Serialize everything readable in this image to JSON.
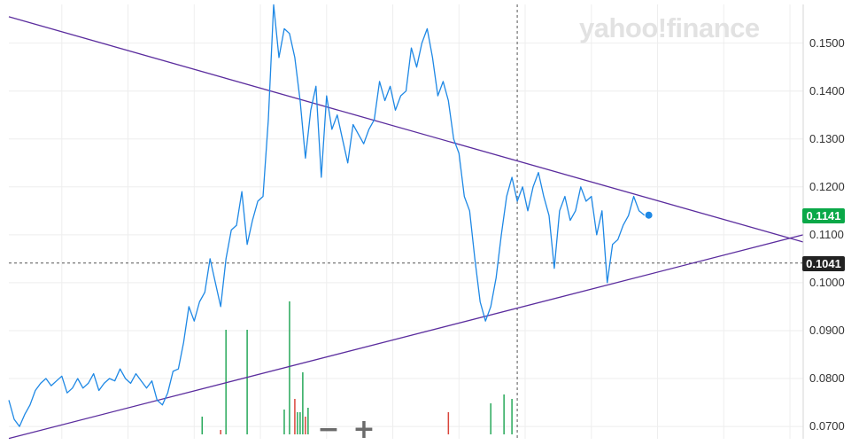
{
  "watermark": "yahoo!finance",
  "colors": {
    "price_line": "#1e88e5",
    "trend_line": "#5b2d9e",
    "grid": "#eeeeee",
    "last_price_bg": "#0aa848",
    "crosshair_bg": "#222222",
    "volume_up": "#27a85a",
    "volume_down": "#d9453b"
  },
  "controls": {
    "zoom_out": "−",
    "zoom_in": "+"
  },
  "tags": {
    "last_price": "0.1141",
    "crosshair_price": "0.1041"
  },
  "chart_data": {
    "type": "line",
    "title": "",
    "xlabel": "",
    "ylabel": "",
    "ylim": [
      0.0665,
      0.159
    ],
    "xlim": [
      0,
      300
    ],
    "grid": true,
    "y_ticks": [
      "0.1500",
      "0.1400",
      "0.1300",
      "0.1200",
      "0.1100",
      "0.1000",
      "0.0900",
      "0.0800",
      "0.0700"
    ],
    "y_tick_values": [
      0.15,
      0.14,
      0.13,
      0.12,
      0.11,
      0.1,
      0.09,
      0.08,
      0.07
    ],
    "x_grid": [
      20,
      45,
      70,
      95,
      120,
      145,
      170,
      195,
      220,
      245,
      270,
      295
    ],
    "series": [
      {
        "x": [
          0,
          2,
          4,
          6,
          8,
          10,
          12,
          14,
          16,
          18,
          20,
          22,
          24,
          26,
          28,
          30,
          32,
          34,
          36,
          38,
          40,
          42,
          44,
          46,
          48,
          50,
          52,
          54,
          56,
          58,
          60,
          62,
          64,
          66,
          68,
          70,
          72,
          74,
          76,
          78,
          80,
          82,
          84,
          86,
          88,
          90,
          92,
          94,
          96,
          98,
          100,
          102,
          104,
          106,
          108,
          110,
          112,
          114,
          116,
          118,
          120,
          122,
          124,
          126,
          128,
          130,
          132,
          134,
          136,
          138,
          140,
          142,
          144,
          146,
          148,
          150,
          152,
          154,
          156,
          158,
          160,
          162,
          164,
          166,
          168,
          170,
          172,
          174,
          176,
          178,
          180,
          182,
          184,
          186,
          188,
          190,
          192,
          194,
          196,
          198,
          200,
          202,
          204,
          206,
          208,
          210,
          212,
          214,
          216,
          218,
          220,
          222,
          224,
          226,
          228,
          230,
          232,
          234,
          236,
          238,
          240
        ],
        "y": [
          0.0755,
          0.0715,
          0.07,
          0.0725,
          0.0745,
          0.0775,
          0.079,
          0.08,
          0.0785,
          0.0795,
          0.0805,
          0.077,
          0.078,
          0.08,
          0.078,
          0.079,
          0.081,
          0.0775,
          0.079,
          0.08,
          0.0795,
          0.082,
          0.08,
          0.079,
          0.081,
          0.0795,
          0.078,
          0.0795,
          0.0755,
          0.0745,
          0.077,
          0.0815,
          0.082,
          0.0875,
          0.095,
          0.092,
          0.096,
          0.098,
          0.105,
          0.1,
          0.095,
          0.105,
          0.111,
          0.112,
          0.119,
          0.108,
          0.113,
          0.117,
          0.118,
          0.134,
          0.158,
          0.147,
          0.153,
          0.152,
          0.147,
          0.138,
          0.126,
          0.136,
          0.141,
          0.122,
          0.139,
          0.132,
          0.135,
          0.13,
          0.125,
          0.133,
          0.131,
          0.129,
          0.132,
          0.134,
          0.142,
          0.138,
          0.141,
          0.136,
          0.139,
          0.14,
          0.149,
          0.145,
          0.15,
          0.153,
          0.147,
          0.139,
          0.142,
          0.138,
          0.13,
          0.127,
          0.118,
          0.115,
          0.105,
          0.096,
          0.092,
          0.095,
          0.101,
          0.11,
          0.118,
          0.122,
          0.117,
          0.12,
          0.115,
          0.12,
          0.123,
          0.118,
          0.114,
          0.103,
          0.115,
          0.118,
          0.113,
          0.115,
          0.12,
          0.117,
          0.118,
          0.11,
          0.115,
          0.1,
          0.108,
          0.109,
          0.112,
          0.114,
          0.118,
          0.115,
          0.1141
        ]
      }
    ],
    "trendlines": [
      {
        "from": [
          0,
          0.1555
        ],
        "to": [
          300,
          0.1085
        ]
      },
      {
        "from": [
          0,
          0.0675
        ],
        "to": [
          300,
          0.11
        ]
      }
    ],
    "crosshair": {
      "x": 192,
      "y": 0.1041
    },
    "volume": {
      "x": [
        73,
        80,
        82,
        90,
        104,
        106,
        108,
        109,
        110,
        111,
        112,
        113,
        166,
        182,
        187,
        190
      ],
      "height": [
        20,
        5,
        118,
        118,
        28,
        150,
        40,
        25,
        25,
        70,
        20,
        30,
        25,
        35,
        45,
        40
      ],
      "up": [
        true,
        false,
        true,
        true,
        true,
        true,
        false,
        true,
        true,
        true,
        false,
        true,
        false,
        true,
        true,
        true
      ]
    }
  }
}
